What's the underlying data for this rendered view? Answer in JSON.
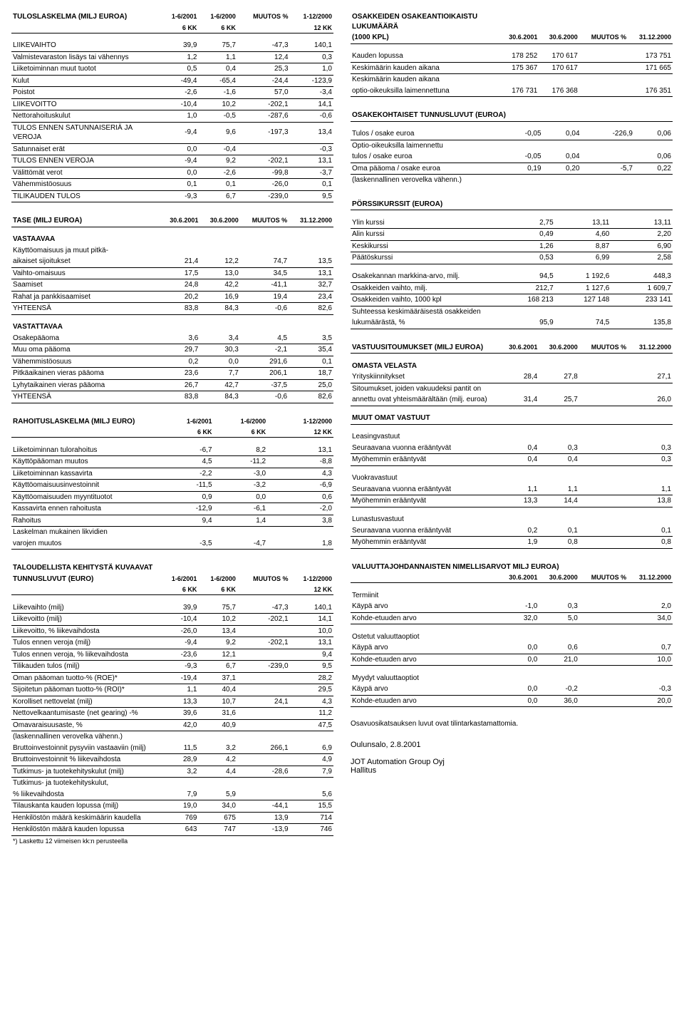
{
  "left": {
    "tulos": {
      "title": "TULOSLASKELMA (MILJ EUROA)",
      "cols": [
        "1-6/2001",
        "1-6/2000",
        "MUUTOS %",
        "1-12/2000"
      ],
      "cols2": [
        "6 KK",
        "6 KK",
        "",
        "12 KK"
      ],
      "rows": [
        [
          "LIIKEVAIHTO",
          "39,9",
          "75,7",
          "-47,3",
          "140,1"
        ],
        [
          "Valmistevaraston lisäys tai vähennys",
          "1,2",
          "1,1",
          "12,4",
          "0,3"
        ],
        [
          "Liiketoiminnan muut tuotot",
          "0,5",
          "0,4",
          "25,3",
          "1,0"
        ],
        [
          "Kulut",
          "-49,4",
          "-65,4",
          "-24,4",
          "-123,9"
        ],
        [
          "Poistot",
          "-2,6",
          "-1,6",
          "57,0",
          "-3,4"
        ],
        [
          "LIIKEVOITTO",
          "-10,4",
          "10,2",
          "-202,1",
          "14,1"
        ],
        [
          "Nettorahoituskulut",
          "1,0",
          "-0,5",
          "-287,6",
          "-0,6"
        ],
        [
          "TULOS ENNEN SATUNNAISERIÄ JA VEROJA",
          "-9,4",
          "9,6",
          "-197,3",
          "13,4"
        ],
        [
          "Satunnaiset erät",
          "0,0",
          "-0,4",
          "",
          "-0,3"
        ],
        [
          "TULOS ENNEN VEROJA",
          "-9,4",
          "9,2",
          "-202,1",
          "13,1"
        ],
        [
          "Välittömät verot",
          "0,0",
          "-2,6",
          "-99,8",
          "-3,7"
        ],
        [
          "Vähemmistöosuus",
          "0,1",
          "0,1",
          "-26,0",
          "0,1"
        ],
        [
          "TILIKAUDEN TULOS",
          "-9,3",
          "6,7",
          "-239,0",
          "9,5"
        ]
      ]
    },
    "tase": {
      "title": "TASE (MILJ EUROA)",
      "cols": [
        "30.6.2001",
        "30.6.2000",
        "MUUTOS %",
        "31.12.2000"
      ],
      "vastaavaa_title": "VASTAAVAA",
      "vastaavaa": [
        [
          "Käyttöomaisuus ja muut pitkä-",
          "",
          "",
          "",
          ""
        ],
        [
          "aikaiset sijoitukset",
          "21,4",
          "12,2",
          "74,7",
          "13,5"
        ],
        [
          "Vaihto-omaisuus",
          "17,5",
          "13,0",
          "34,5",
          "13,1"
        ],
        [
          "Saamiset",
          "24,8",
          "42,2",
          "-41,1",
          "32,7"
        ],
        [
          "Rahat ja pankkisaamiset",
          "20,2",
          "16,9",
          "19,4",
          "23,4"
        ],
        [
          "YHTEENSÄ",
          "83,8",
          "84,3",
          "-0,6",
          "82,6"
        ]
      ],
      "vastattavaa_title": "VASTATTAVAA",
      "vastattavaa": [
        [
          "Osakepääoma",
          "3,6",
          "3,4",
          "4,5",
          "3,5"
        ],
        [
          "Muu oma pääoma",
          "29,7",
          "30,3",
          "-2,1",
          "35,4"
        ],
        [
          "Vähemmistöosuus",
          "0,2",
          "0,0",
          "291,6",
          "0,1"
        ],
        [
          "Pitkäaikainen vieras pääoma",
          "23,6",
          "7,7",
          "206,1",
          "18,7"
        ],
        [
          "Lyhytaikainen vieras pääoma",
          "26,7",
          "42,7",
          "-37,5",
          "25,0"
        ],
        [
          "YHTEENSÄ",
          "83,8",
          "84,3",
          "-0,6",
          "82,6"
        ]
      ]
    },
    "rahoitus": {
      "title": "RAHOITUSLASKELMA (MILJ EURO)",
      "cols": [
        "1-6/2001",
        "1-6/2000",
        "",
        "1-12/2000"
      ],
      "cols2": [
        "6 KK",
        "6 KK",
        "",
        "12 KK"
      ],
      "rows": [
        [
          "Liiketoiminnan tulorahoitus",
          "-6,7",
          "8,2",
          "",
          "13,1"
        ],
        [
          "Käyttöpääoman muutos",
          "4,5",
          "-11,2",
          "",
          "-8,8"
        ],
        [
          "Liiketoiminnan kassavirta",
          "-2,2",
          "-3,0",
          "",
          "4,3"
        ],
        [
          "Käyttöomaisuusinvestoinnit",
          "-11,5",
          "-3,2",
          "",
          "-6,9"
        ],
        [
          "Käyttöomaisuuden myyntituotot",
          "0,9",
          "0,0",
          "",
          "0,6"
        ],
        [
          "Kassavirta ennen rahoitusta",
          "-12,9",
          "-6,1",
          "",
          "-2,0"
        ],
        [
          "Rahoitus",
          "9,4",
          "1,4",
          "",
          "3,8"
        ],
        [
          "Laskelman mukainen likvidien",
          "",
          "",
          "",
          ""
        ],
        [
          "varojen muutos",
          "-3,5",
          "-4,7",
          "",
          "1,8"
        ]
      ]
    },
    "tunnus": {
      "title": "TALOUDELLISTA KEHITYSTÄ KUVAAVAT",
      "title2": "TUNNUSLUVUT (EURO)",
      "cols": [
        "1-6/2001",
        "1-6/2000",
        "MUUTOS %",
        "1-12/2000"
      ],
      "cols2": [
        "6 KK",
        "6 KK",
        "",
        "12 KK"
      ],
      "rows": [
        [
          "Liikevaihto (milj)",
          "39,9",
          "75,7",
          "-47,3",
          "140,1"
        ],
        [
          "Liikevoitto (milj)",
          "-10,4",
          "10,2",
          "-202,1",
          "14,1"
        ],
        [
          "Liikevoitto, % liikevaihdosta",
          "-26,0",
          "13,4",
          "",
          "10,0"
        ],
        [
          "Tulos ennen veroja (milj)",
          "-9,4",
          "9,2",
          "-202,1",
          "13,1"
        ],
        [
          "Tulos ennen veroja, % liikevaihdosta",
          "-23,6",
          "12,1",
          "",
          "9,4"
        ],
        [
          "Tilikauden tulos (milj)",
          "-9,3",
          "6,7",
          "-239,0",
          "9,5"
        ],
        [
          "Oman pääoman tuotto-% (ROE)*",
          "-19,4",
          "37,1",
          "",
          "28,2"
        ],
        [
          "Sijoitetun pääoman tuotto-% (ROI)*",
          "1,1",
          "40,4",
          "",
          "29,5"
        ],
        [
          "Korolliset nettovelat (milj)",
          "13,3",
          "10,7",
          "24,1",
          "4,3"
        ],
        [
          "Nettovelkaantumisaste (net gearing) -%",
          "39,6",
          "31,6",
          "",
          "11,2"
        ],
        [
          "Omavaraisuusaste, %",
          "42,0",
          "40,9",
          "",
          "47,5"
        ],
        [
          "(laskennallinen verovelka vähenn.)",
          "",
          "",
          "",
          ""
        ],
        [
          "Bruttoinvestoinnit pysyviin vastaaviin (milj)",
          "11,5",
          "3,2",
          "266,1",
          "6,9"
        ],
        [
          "Bruttoinvestoinnit % liikevaihdosta",
          "28,9",
          "4,2",
          "",
          "4,9"
        ],
        [
          "Tutkimus- ja tuotekehityskulut (milj)",
          "3,2",
          "4,4",
          "-28,6",
          "7,9"
        ],
        [
          "Tutkimus- ja tuotekehityskulut,",
          "",
          "",
          "",
          ""
        ],
        [
          "% liikevaihdosta",
          "7,9",
          "5,9",
          "",
          "5,6"
        ],
        [
          "Tilauskanta kauden lopussa (milj)",
          "19,0",
          "34,0",
          "-44,1",
          "15,5"
        ],
        [
          "Henkilöstön määrä keskimäärin kaudella",
          "769",
          "675",
          "13,9",
          "714"
        ],
        [
          "Henkilöstön määrä kauden lopussa",
          "643",
          "747",
          "-13,9",
          "746"
        ]
      ],
      "footnote": "*) Laskettu 12 viimeisen kk:n perusteella"
    }
  },
  "right": {
    "osakkeet": {
      "title": "OSAKKEIDEN OSAKEANTIOIKAISTU LUKUMÄÄRÄ",
      "sub": "(1000 KPL)",
      "cols": [
        "30.6.2001",
        "30.6.2000",
        "MUUTOS %",
        "31.12.2000"
      ],
      "rows": [
        [
          "Kauden lopussa",
          "178 252",
          "170 617",
          "",
          "173 751"
        ],
        [
          "Keskimäärin kauden aikana",
          "175 367",
          "170 617",
          "",
          "171 665"
        ],
        [
          "Keskimäärin kauden aikana",
          "",
          "",
          "",
          ""
        ],
        [
          "optio-oikeuksilla laimennettuna",
          "176 731",
          "176 368",
          "",
          "176 351"
        ]
      ]
    },
    "osakekoht": {
      "title": "OSAKEKOHTAISET TUNNUSLUVUT (EUROA)",
      "rows": [
        [
          "Tulos / osake euroa",
          "-0,05",
          "0,04",
          "-226,9",
          "0,06"
        ],
        [
          "Optio-oikeuksilla laimennettu",
          "",
          "",
          "",
          ""
        ],
        [
          "tulos / osake euroa",
          "-0,05",
          "0,04",
          "",
          "0,06"
        ],
        [
          "Oma pääoma / osake euroa",
          "0,19",
          "0,20",
          "-5,7",
          "0,22"
        ],
        [
          "(laskennallinen verovelka vähenn.)",
          "",
          "",
          "",
          ""
        ]
      ]
    },
    "porssi": {
      "title": "PÖRSSIKURSSIT (EUROA)",
      "rows": [
        [
          "Ylin kurssi",
          "2,75",
          "13,11",
          "",
          "13,11"
        ],
        [
          "Alin kurssi",
          "0,49",
          "4,60",
          "",
          "2,20"
        ],
        [
          "Keskikurssi",
          "1,26",
          "8,87",
          "",
          "6,90"
        ],
        [
          "Päätöskurssi",
          "0,53",
          "6,99",
          "",
          "2,58"
        ]
      ],
      "rows2": [
        [
          "Osakekannan markkina-arvo, milj.",
          "94,5",
          "1 192,6",
          "",
          "448,3"
        ],
        [
          "Osakkeiden vaihto, milj.",
          "212,7",
          "1 127,6",
          "",
          "1 609,7"
        ],
        [
          "Osakkeiden vaihto, 1000 kpl",
          "168 213",
          "127 148",
          "",
          "233 141"
        ],
        [
          "Suhteessa keskimääräisestä osakkeiden",
          "",
          "",
          "",
          ""
        ],
        [
          "lukumäärästä, %",
          "95,9",
          "74,5",
          "",
          "135,8"
        ]
      ]
    },
    "vastuu": {
      "title": "VASTUUSITOUMUKSET (MILJ EUROA)",
      "cols": [
        "30.6.2001",
        "30.6.2000",
        "MUUTOS %",
        "31.12.2000"
      ],
      "omasta_title": "OMASTA VELASTA",
      "omasta": [
        [
          "Yrityskiinnitykset",
          "28,4",
          "27,8",
          "",
          "27,1"
        ],
        [
          "Sitoumukset, joiden vakuudeksi pantit on",
          "",
          "",
          "",
          ""
        ],
        [
          "annettu ovat yhteismäärältään (milj. euroa)",
          "31,4",
          "25,7",
          "",
          "26,0"
        ]
      ],
      "muut_title": "MUUT OMAT VASTUUT",
      "leasing_title": "Leasingvastuut",
      "leasing": [
        [
          "Seuraavana vuonna erääntyvät",
          "0,4",
          "0,3",
          "",
          "0,3"
        ],
        [
          "Myöhemmin erääntyvät",
          "0,4",
          "0,4",
          "",
          "0,3"
        ]
      ],
      "vuokra_title": "Vuokravastuut",
      "vuokra": [
        [
          "Seuraavana vuonna erääntyvät",
          "1,1",
          "1,1",
          "",
          "1,1"
        ],
        [
          "Myöhemmin erääntyvät",
          "13,3",
          "14,4",
          "",
          "13,8"
        ]
      ],
      "lunastus_title": "Lunastusvastuut",
      "lunastus": [
        [
          "Seuraavana vuonna erääntyvät",
          "0,2",
          "0,1",
          "",
          "0,1"
        ],
        [
          "Myöhemmin erääntyvät",
          "1,9",
          "0,8",
          "",
          "0,8"
        ]
      ]
    },
    "valuutta": {
      "title": "VALUUTTAJOHDANNAISTEN NIMELLISARVOT MILJ EUROA)",
      "cols": [
        "30.6.2001",
        "30.6.2000",
        "MUUTOS %",
        "31.12.2000"
      ],
      "termiinit_title": "Termiinit",
      "termiinit": [
        [
          "Käypä arvo",
          "-1,0",
          "0,3",
          "",
          "2,0"
        ],
        [
          "Kohde-etuuden arvo",
          "32,0",
          "5,0",
          "",
          "34,0"
        ]
      ],
      "ostetut_title": "Ostetut valuuttaoptiot",
      "ostetut": [
        [
          "Käypä arvo",
          "0,0",
          "0,6",
          "",
          "0,7"
        ],
        [
          "Kohde-etuuden arvo",
          "0,0",
          "21,0",
          "",
          "10,0"
        ]
      ],
      "myydyt_title": "Myydyt valuuttaoptiot",
      "myydyt": [
        [
          "Käypä arvo",
          "0,0",
          "-0,2",
          "",
          "-0,3"
        ],
        [
          "Kohde-etuuden arvo",
          "0,0",
          "36,0",
          "",
          "20,0"
        ]
      ]
    },
    "note": "Osavuosikatsauksen luvut ovat tilintarkastamattomia.",
    "place_date": "Oulunsalo, 2.8.2001",
    "company": "JOT Automation Group Oyj",
    "board": "Hallitus"
  }
}
